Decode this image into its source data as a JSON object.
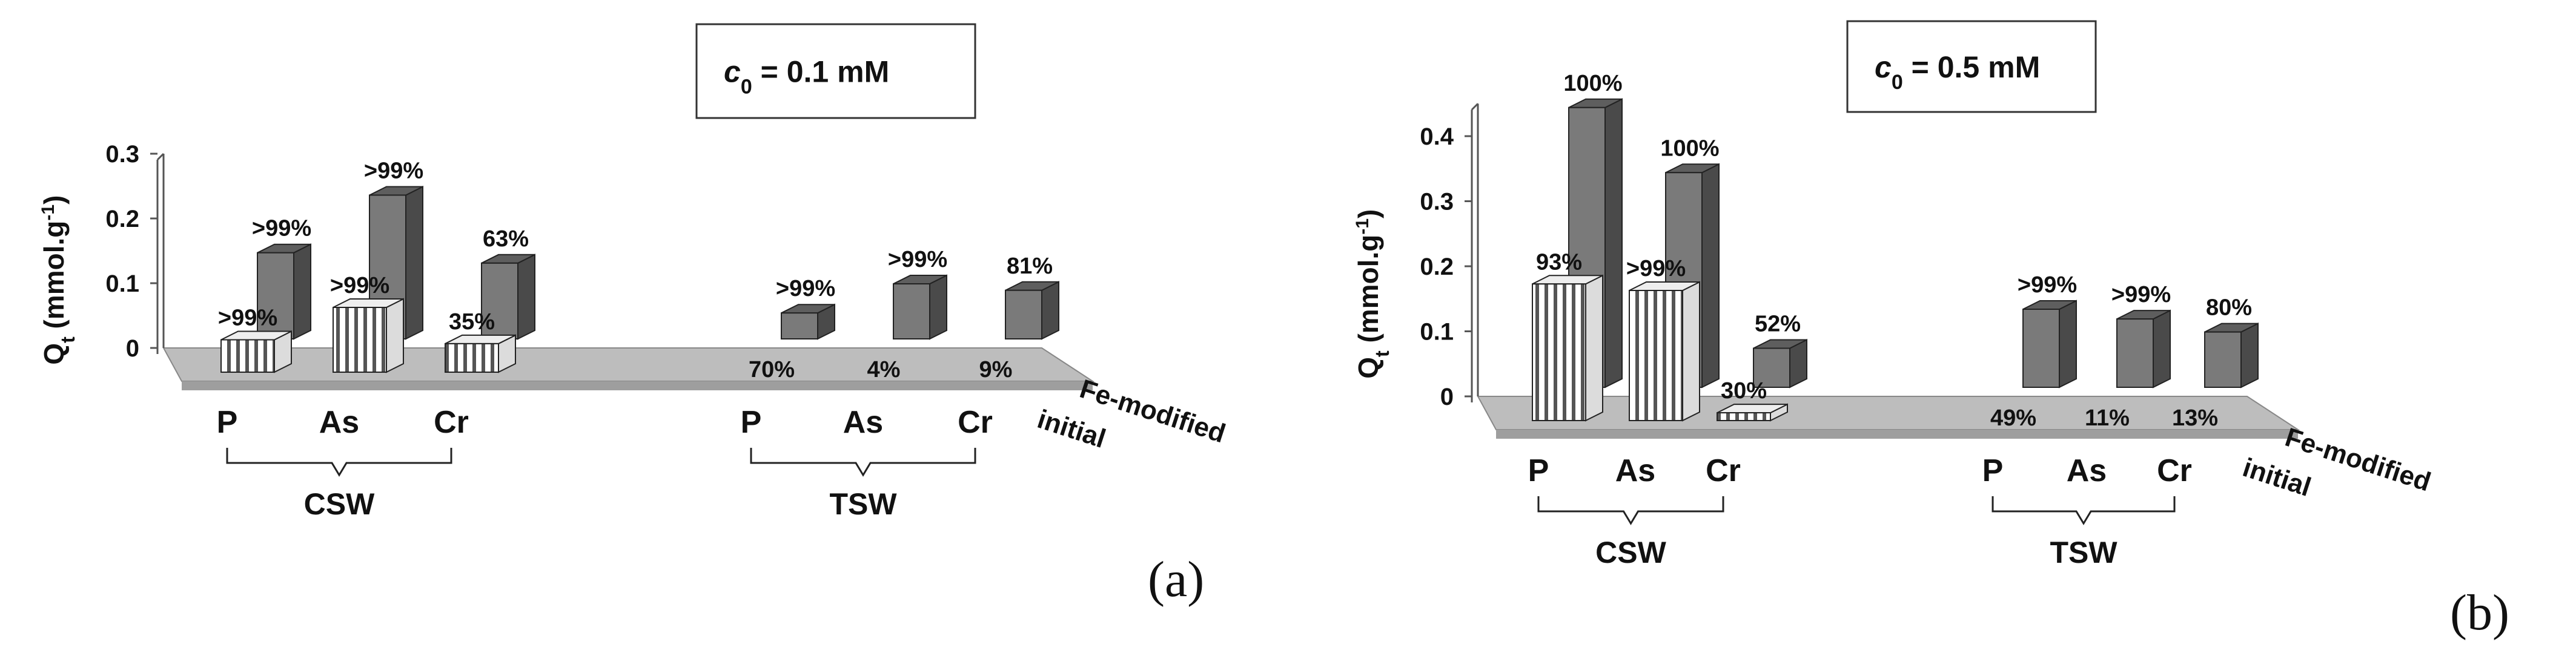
{
  "chart_data": [
    {
      "type": "bar",
      "panel_label": "(a)",
      "concentration_label": "c0 = 0.1 mM",
      "conc_symbol": "c",
      "conc_subscript": "0",
      "conc_rest": " = 0.1 mM",
      "ylabel_main": "Q",
      "ylabel_sub": "t",
      "ylabel_unit_a": " (mmol.g",
      "ylabel_sup": "-1",
      "ylabel_unit_b": ")",
      "yticks": [
        "0",
        "0.1",
        "0.2",
        "0.3"
      ],
      "ylim": [
        0,
        0.3
      ],
      "rows": [
        "Fe-modified",
        "initial"
      ],
      "groups": [
        {
          "name": "CSW",
          "categories": [
            "P",
            "As",
            "Cr"
          ]
        },
        {
          "name": "TSW",
          "categories": [
            "P",
            "As",
            "Cr"
          ]
        }
      ],
      "series": [
        {
          "name": "Fe-modified",
          "group": "CSW",
          "values": [
            0.133,
            0.222,
            0.117
          ],
          "labels": [
            ">99%",
            ">99%",
            "63%"
          ]
        },
        {
          "name": "initial",
          "group": "CSW",
          "values": [
            0.05,
            0.1,
            0.044
          ],
          "labels": [
            ">99%",
            ">99%",
            "35%"
          ]
        },
        {
          "name": "Fe-modified",
          "group": "TSW",
          "values": [
            0.04,
            0.085,
            0.075
          ],
          "labels": [
            ">99%",
            ">99%",
            "81%"
          ]
        },
        {
          "name": "initial",
          "group": "TSW",
          "values": [
            0,
            0,
            0
          ],
          "labels": [
            "70%",
            "4%",
            "9%"
          ]
        }
      ]
    },
    {
      "type": "bar",
      "panel_label": "(b)",
      "concentration_label": "c0 = 0.5 mM",
      "conc_symbol": "c",
      "conc_subscript": "0",
      "conc_rest": " = 0.5 mM",
      "ylabel_main": "Q",
      "ylabel_sub": "t",
      "ylabel_unit_a": " (mmol.g",
      "ylabel_sup": "-1",
      "ylabel_unit_b": ")",
      "yticks": [
        "0",
        "0.1",
        "0.2",
        "0.3",
        "0.4"
      ],
      "ylim": [
        0,
        0.45
      ],
      "rows": [
        "Fe-modified",
        "initial"
      ],
      "groups": [
        {
          "name": "CSW",
          "categories": [
            "P",
            "As",
            "Cr"
          ]
        },
        {
          "name": "TSW",
          "categories": [
            "P",
            "As",
            "Cr"
          ]
        }
      ],
      "series": [
        {
          "name": "Fe-modified",
          "group": "CSW",
          "values": [
            0.43,
            0.33,
            0.06
          ],
          "labels": [
            "100%",
            "100%",
            "52%"
          ]
        },
        {
          "name": "initial",
          "group": "CSW",
          "values": [
            0.21,
            0.2,
            0.012
          ],
          "labels": [
            "93%",
            ">99%",
            "30%"
          ]
        },
        {
          "name": "Fe-modified",
          "group": "TSW",
          "values": [
            0.12,
            0.105,
            0.085
          ],
          "labels": [
            ">99%",
            ">99%",
            "80%"
          ]
        },
        {
          "name": "initial",
          "group": "TSW",
          "values": [
            0,
            0,
            0
          ],
          "labels": [
            "49%",
            "11%",
            "13%"
          ]
        }
      ]
    }
  ]
}
